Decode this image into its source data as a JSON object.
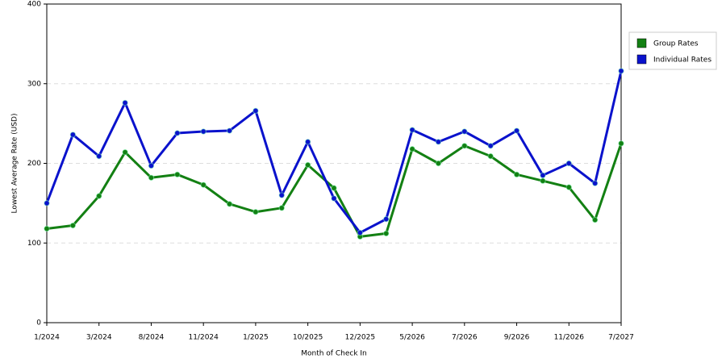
{
  "chart_data": {
    "type": "line",
    "x_label": "Month of Check In",
    "y_label": "Lowest Average Rate (USD)",
    "categories": [
      "1/2024",
      null,
      "3/2024",
      null,
      "8/2024",
      null,
      "11/2024",
      null,
      "1/2025",
      null,
      "10/2025",
      null,
      "12/2025",
      null,
      "5/2026",
      null,
      "7/2026",
      null,
      "9/2026",
      null,
      "11/2026",
      null,
      "7/2027"
    ],
    "series": [
      {
        "name": "Group Rates",
        "color": "#138013",
        "values": [
          118,
          122,
          159,
          214,
          182,
          186,
          173,
          149,
          139,
          144,
          198,
          169,
          108,
          112,
          218,
          200,
          222,
          209,
          186,
          178,
          170,
          129,
          225
        ]
      },
      {
        "name": "Individual Rates",
        "color": "#0a12cc",
        "values": [
          150,
          236,
          209,
          276,
          197,
          238,
          240,
          241,
          266,
          160,
          227,
          156,
          113,
          130,
          242,
          227,
          240,
          222,
          241,
          185,
          200,
          175,
          316
        ]
      }
    ],
    "ylim": [
      0,
      400
    ],
    "yticks": [
      0,
      100,
      200,
      300,
      400
    ],
    "grid": true,
    "legend": "right"
  }
}
